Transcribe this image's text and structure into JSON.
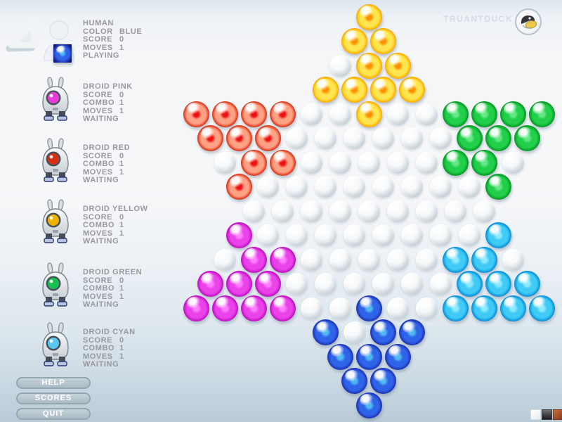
{
  "logo": {
    "text": "TRUANTDUCK"
  },
  "players": [
    {
      "id": "blue",
      "type": "human",
      "name": "HUMAN",
      "rows": [
        {
          "label": "COLOR",
          "value": "BLUE"
        },
        {
          "label": "SCORE",
          "value": "0"
        },
        {
          "label": "MOVES",
          "value": "1"
        }
      ],
      "status": "PLAYING"
    },
    {
      "id": "pink",
      "type": "droid",
      "name": "DROID PINK",
      "rows": [
        {
          "label": "SCORE",
          "value": "0"
        },
        {
          "label": "COMBO",
          "value": "1"
        },
        {
          "label": "MOVES",
          "value": "1"
        }
      ],
      "status": "WAITING"
    },
    {
      "id": "red",
      "type": "droid",
      "name": "DROID RED",
      "rows": [
        {
          "label": "SCORE",
          "value": "0"
        },
        {
          "label": "COMBO",
          "value": "1"
        },
        {
          "label": "MOVES",
          "value": "1"
        }
      ],
      "status": "WAITING"
    },
    {
      "id": "yellow",
      "type": "droid",
      "name": "DROID YELLOW",
      "rows": [
        {
          "label": "SCORE",
          "value": "0"
        },
        {
          "label": "COMBO",
          "value": "1"
        },
        {
          "label": "MOVES",
          "value": "1"
        }
      ],
      "status": "WAITING"
    },
    {
      "id": "green",
      "type": "droid",
      "name": "DROID GREEN",
      "rows": [
        {
          "label": "SCORE",
          "value": "0"
        },
        {
          "label": "COMBO",
          "value": "1"
        },
        {
          "label": "MOVES",
          "value": "1"
        }
      ],
      "status": "WAITING"
    },
    {
      "id": "cyan",
      "type": "droid",
      "name": "DROID CYAN",
      "rows": [
        {
          "label": "SCORE",
          "value": "0"
        },
        {
          "label": "COMBO",
          "value": "1"
        },
        {
          "label": "MOVES",
          "value": "1"
        }
      ],
      "status": "WAITING"
    }
  ],
  "buttons": [
    {
      "label": "HELP"
    },
    {
      "label": "SCORES"
    },
    {
      "label": "QUIT"
    }
  ],
  "swatches": [
    "white",
    "black",
    "rust"
  ],
  "board": {
    "legend": {
      "Y": "yellow",
      "R": "red",
      "G": "green",
      "M": "magenta",
      "C": "cyan",
      "B": "blue",
      ".": "empty"
    },
    "rows": [
      "Y",
      "YY",
      ".YY",
      "YYYY",
      "RRRR..Y..GGGG",
      "RRR......GGG",
      ".RR.....GG.",
      "R........G",
      ".........",
      "M........C",
      ".MM.....CC.",
      "MMM......CCC",
      "MMMM..B..CCCC",
      "B.BB",
      "BBB",
      "BB",
      "B"
    ]
  },
  "marble_colors": {
    "yellow": {
      "center": "#ff9100",
      "mid": "#ffe54f",
      "outer": "#ffb300",
      "rim": "#a33000"
    },
    "red": {
      "center": "#ee1010",
      "mid": "#ffa184",
      "outer": "#de3c20",
      "rim": "#6e0a00"
    },
    "green": {
      "center": "#63e886",
      "mid": "#22cf4a",
      "outer": "#069e28",
      "rim": "#05400f"
    },
    "magenta": {
      "center": "#ff7dff",
      "mid": "#ea43ea",
      "outer": "#c414c4",
      "rim": "#6b006b"
    },
    "cyan": {
      "center": "#8ce9ff",
      "mid": "#3fcbf5",
      "outer": "#0c94dc",
      "rim": "#0a4a9e"
    },
    "blue": {
      "center": "#52b8f2",
      "mid": "#2f63e8",
      "outer": "#2038b8",
      "rim": "#141a78"
    }
  },
  "eye_colors": {
    "pink": "#e83cd8",
    "red": "#d83018",
    "yellow": "#eeb200",
    "green": "#16c050",
    "cyan": "#5ac8ee"
  }
}
